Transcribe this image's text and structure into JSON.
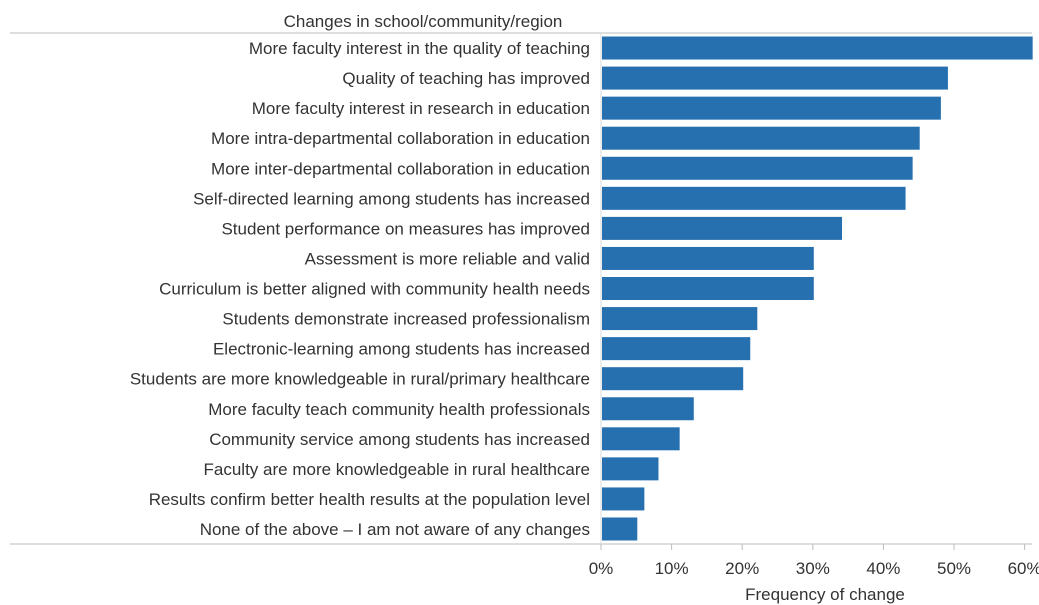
{
  "chart_data": {
    "type": "bar",
    "orientation": "horizontal",
    "header": "Changes in school/community/region",
    "xlabel": "Frequency of change",
    "ylabel": "",
    "xlim": [
      0,
      62
    ],
    "ticks": [
      0,
      10,
      20,
      30,
      40,
      50,
      60
    ],
    "tick_labels": [
      "0%",
      "10%",
      "20%",
      "30%",
      "40%",
      "50%",
      "60%"
    ],
    "grid": false,
    "bar_color": "#2770b0",
    "categories": [
      "More faculty interest in the quality of teaching",
      "Quality of teaching has improved",
      "More faculty interest in research in education",
      "More intra-departmental collaboration in education",
      "More inter-departmental collaboration in education",
      "Self-directed learning among students has increased",
      "Student performance on measures has improved",
      "Assessment is more reliable and valid",
      "Curriculum is better aligned with community health needs",
      "Students demonstrate increased professionalism",
      "Electronic-learning among students has increased",
      "Students are more knowledgeable in rural/primary healthcare",
      "More faculty teach community health professionals",
      "Community service among students has increased",
      "Faculty are more knowledgeable in rural healthcare",
      "Results confirm better health results at the population level",
      "None of the above – I am not aware of any changes"
    ],
    "values": [
      61,
      49,
      48,
      45,
      44,
      43,
      34,
      30,
      30,
      22,
      21,
      20,
      13,
      11,
      8,
      6,
      5
    ]
  }
}
